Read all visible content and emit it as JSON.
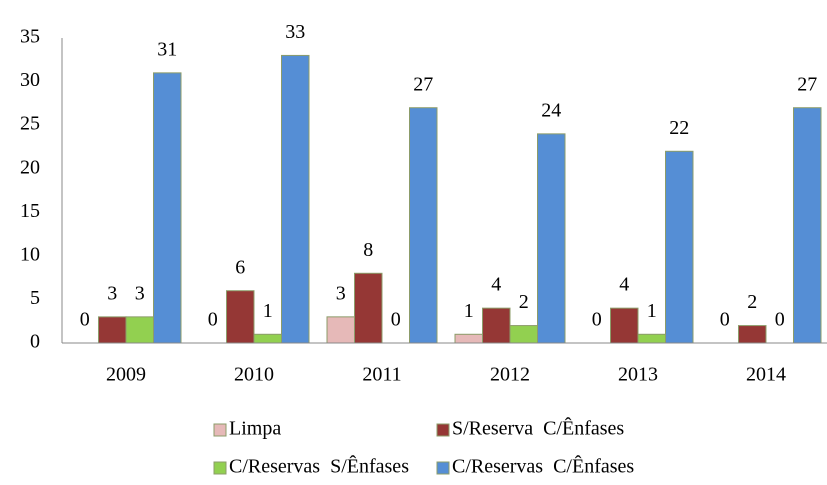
{
  "chart_data": {
    "type": "bar",
    "categories": [
      "2009",
      "2010",
      "2011",
      "2012",
      "2013",
      "2014"
    ],
    "series": [
      {
        "name": "Limpa",
        "color": "#e6b9b8",
        "values": [
          0,
          0,
          3,
          1,
          0,
          0
        ]
      },
      {
        "name": "S/Reserva  C/Ênfases",
        "color": "#953735",
        "values": [
          3,
          6,
          8,
          4,
          4,
          2
        ]
      },
      {
        "name": "C/Reservas  S/Ênfases",
        "color": "#92d050",
        "values": [
          3,
          1,
          0,
          2,
          1,
          0
        ]
      },
      {
        "name": "C/Reservas  C/Ênfases",
        "color": "#558ed5",
        "values": [
          31,
          33,
          27,
          24,
          22,
          27
        ]
      }
    ],
    "ylim": [
      0,
      35
    ],
    "yticks": [
      0,
      5,
      10,
      15,
      20,
      25,
      30,
      35
    ],
    "grid": false,
    "legend": "bottom"
  }
}
